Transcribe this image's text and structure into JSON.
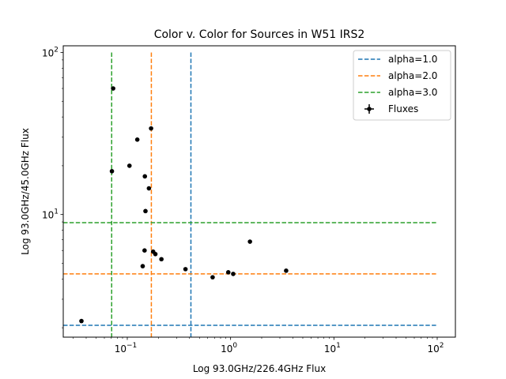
{
  "chart_data": {
    "type": "scatter",
    "title": "Color v. Color for Sources in W51 IRS2",
    "xlabel": "Log 93.0GHz/226.4GHz Flux",
    "ylabel": "Log 93.0GHz/45.0GHz Flux",
    "xscale": "log",
    "yscale": "log",
    "xlim": [
      0.024,
      150
    ],
    "ylim": [
      1.75,
      110
    ],
    "x_ticks": [
      {
        "value": 0.1,
        "label": "10",
        "exp": "−1"
      },
      {
        "value": 1,
        "label": "10",
        "exp": "0"
      },
      {
        "value": 10,
        "label": "10",
        "exp": "1"
      },
      {
        "value": 100,
        "label": "10",
        "exp": "2"
      }
    ],
    "y_ticks": [
      {
        "value": 10,
        "label": "10",
        "exp": "1"
      },
      {
        "value": 100,
        "label": "10",
        "exp": "2"
      }
    ],
    "legend_position": "top-right",
    "series": [
      {
        "name": "Fluxes",
        "kind": "points",
        "color": "#000000",
        "x": [
          0.036,
          0.073,
          0.071,
          0.105,
          0.125,
          0.17,
          0.148,
          0.162,
          0.15,
          0.147,
          0.141,
          0.178,
          0.187,
          0.214,
          0.366,
          0.67,
          0.95,
          1.06,
          1.54,
          3.45
        ],
        "y": [
          2.2,
          60,
          18.5,
          20,
          29,
          34,
          17.2,
          14.5,
          10.5,
          6.0,
          4.8,
          5.9,
          5.7,
          5.3,
          4.6,
          4.1,
          4.4,
          4.3,
          6.8,
          4.5
        ]
      },
      {
        "name": "alpha=1.0",
        "kind": "lines",
        "color": "#1f77b4",
        "vx": 0.413,
        "vy_range": [
          1.75,
          100
        ],
        "hy": 2.07,
        "hx_range": [
          0.024,
          100
        ]
      },
      {
        "name": "alpha=2.0",
        "kind": "lines",
        "color": "#ff7f0e",
        "vx": 0.171,
        "vy_range": [
          1.75,
          100
        ],
        "hy": 4.3,
        "hx_range": [
          0.024,
          100
        ]
      },
      {
        "name": "alpha=3.0",
        "kind": "lines",
        "color": "#2ca02c",
        "vx": 0.0706,
        "vy_range": [
          1.75,
          100
        ],
        "hy": 8.91,
        "hx_range": [
          0.024,
          100
        ]
      }
    ],
    "legend": [
      "alpha=1.0",
      "alpha=2.0",
      "alpha=3.0",
      "Fluxes"
    ]
  }
}
